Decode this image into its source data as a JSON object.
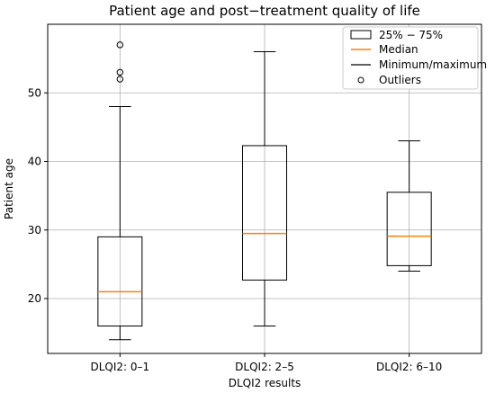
{
  "chart_data": {
    "type": "box",
    "title": "Patient age and post−treatment quality of life",
    "xlabel": "DLQI2 results",
    "ylabel": "Patient age",
    "categories": [
      "DLQI2: 0–1",
      "DLQI2: 2–5",
      "DLQI2: 6–10"
    ],
    "ylim": [
      12,
      60
    ],
    "yticks": [
      20,
      30,
      40,
      50
    ],
    "grid": true,
    "legend_position": "top-right",
    "legend": [
      "25% − 75%",
      "Median",
      "Minimum/maximum",
      "Outliers"
    ],
    "boxes": [
      {
        "min": 14,
        "q1": 16,
        "median": 21,
        "q3": 29,
        "max": 48,
        "outliers": [
          52,
          53,
          57
        ]
      },
      {
        "min": 16,
        "q1": 22.7,
        "median": 29.5,
        "q3": 42.3,
        "max": 56,
        "outliers": []
      },
      {
        "min": 24,
        "q1": 24.8,
        "median": 29.1,
        "q3": 35.5,
        "max": 43,
        "outliers": []
      }
    ],
    "colors": {
      "box": "#000000",
      "median": "#ff7f0e",
      "whisker": "#000000",
      "outlier": "#000000",
      "grid": "#b0b0b0"
    }
  }
}
